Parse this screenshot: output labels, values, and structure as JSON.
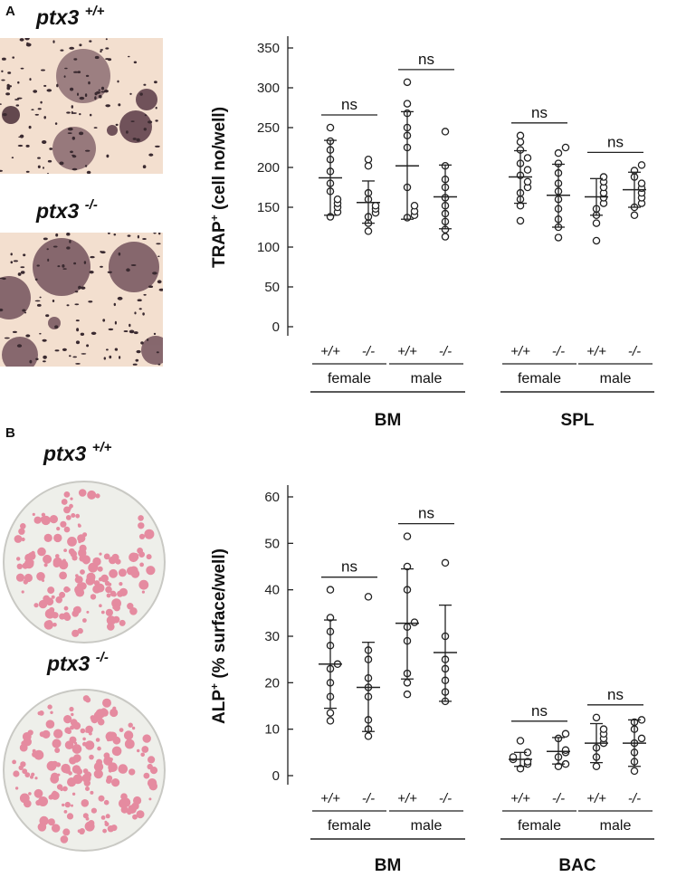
{
  "panels": {
    "a": {
      "letter": "A",
      "label_top": "ptx3",
      "label_top_sup": "+/+",
      "label_bottom": "ptx3",
      "label_bottom_sup": "-/-"
    },
    "b": {
      "letter": "B",
      "label_top": "ptx3",
      "label_top_sup": "+/+",
      "label_bottom": "ptx3",
      "label_bottom_sup": "-/-"
    }
  },
  "chart_data": [
    {
      "type": "scatter",
      "ylabel": "TRAP",
      "ylabel_sup": "+",
      "ylabel_rest": " (cell no/well)",
      "ylim": [
        0,
        350
      ],
      "yticks": [
        0,
        50,
        100,
        150,
        200,
        250,
        300,
        350
      ],
      "groups": [
        {
          "genotype": "+/+",
          "sex": "female",
          "tissue": "BM",
          "mean": 187,
          "sd_low": 140,
          "sd_high": 234,
          "points": [
            138,
            144,
            150,
            155,
            160,
            170,
            180,
            195,
            210,
            222,
            233,
            250
          ]
        },
        {
          "genotype": "-/-",
          "sex": "female",
          "tissue": "BM",
          "mean": 156,
          "sd_low": 130,
          "sd_high": 183,
          "points": [
            120,
            130,
            138,
            143,
            148,
            152,
            160,
            168,
            202,
            210
          ]
        },
        {
          "genotype": "+/+",
          "sex": "male",
          "tissue": "BM",
          "mean": 202,
          "sd_low": 135,
          "sd_high": 270,
          "points": [
            137,
            140,
            145,
            152,
            175,
            225,
            240,
            250,
            268,
            280,
            307
          ]
        },
        {
          "genotype": "-/-",
          "sex": "male",
          "tissue": "BM",
          "mean": 163,
          "sd_low": 123,
          "sd_high": 203,
          "points": [
            113,
            122,
            132,
            142,
            152,
            162,
            175,
            185,
            202,
            245
          ]
        },
        {
          "genotype": "+/+",
          "sex": "female",
          "tissue": "SPL",
          "mean": 188,
          "sd_low": 155,
          "sd_high": 221,
          "points": [
            133,
            152,
            160,
            168,
            175,
            182,
            190,
            197,
            205,
            212,
            222,
            232,
            240
          ]
        },
        {
          "genotype": "-/-",
          "sex": "female",
          "tissue": "SPL",
          "mean": 165,
          "sd_low": 125,
          "sd_high": 204,
          "points": [
            112,
            125,
            135,
            148,
            160,
            170,
            180,
            193,
            205,
            218,
            225
          ]
        },
        {
          "genotype": "+/+",
          "sex": "male",
          "tissue": "SPL",
          "mean": 163,
          "sd_low": 140,
          "sd_high": 186,
          "points": [
            108,
            130,
            140,
            148,
            155,
            162,
            168,
            175,
            182,
            188
          ]
        },
        {
          "genotype": "-/-",
          "sex": "male",
          "tissue": "SPL",
          "mean": 172,
          "sd_low": 150,
          "sd_high": 194,
          "points": [
            140,
            150,
            155,
            162,
            168,
            174,
            180,
            188,
            196,
            203
          ]
        }
      ],
      "annotations": [
        "ns",
        "ns",
        "ns",
        "ns"
      ],
      "x_labels": {
        "genotypes": [
          "+/+",
          "-/-",
          "+/+",
          "-/-",
          "+/+",
          "-/-",
          "+/+",
          "-/-"
        ],
        "sexes": [
          "female",
          "male",
          "female",
          "male"
        ],
        "tissues": [
          "BM",
          "SPL"
        ]
      }
    },
    {
      "type": "scatter",
      "ylabel": "ALP",
      "ylabel_sup": "+",
      "ylabel_rest": " (% surface/well)",
      "ylim": [
        0,
        60
      ],
      "yticks": [
        0,
        10,
        20,
        30,
        40,
        50,
        60
      ],
      "groups": [
        {
          "genotype": "+/+",
          "sex": "female",
          "tissue": "BM",
          "mean": 24,
          "sd_low": 14.5,
          "sd_high": 33.5,
          "points": [
            11.8,
            13.5,
            17,
            20,
            23,
            24,
            28,
            31,
            34,
            40
          ]
        },
        {
          "genotype": "-/-",
          "sex": "female",
          "tissue": "BM",
          "mean": 19,
          "sd_low": 9.5,
          "sd_high": 28.7,
          "points": [
            8.5,
            10,
            12,
            17,
            19,
            21,
            25,
            27,
            38.5
          ]
        },
        {
          "genotype": "+/+",
          "sex": "male",
          "tissue": "BM",
          "mean": 32.8,
          "sd_low": 20.8,
          "sd_high": 44.5,
          "points": [
            17.5,
            20,
            22,
            29,
            32,
            33,
            40,
            45,
            51.5
          ]
        },
        {
          "genotype": "-/-",
          "sex": "male",
          "tissue": "BM",
          "mean": 26.5,
          "sd_low": 16,
          "sd_high": 36.7,
          "points": [
            16,
            18,
            20.5,
            23,
            25,
            30,
            45.8
          ]
        },
        {
          "genotype": "+/+",
          "sex": "female",
          "tissue": "BAC",
          "mean": 3.5,
          "sd_low": 2,
          "sd_high": 5,
          "points": [
            1.5,
            2.5,
            3,
            3.5,
            4,
            5,
            7.5
          ]
        },
        {
          "genotype": "-/-",
          "sex": "female",
          "tissue": "BAC",
          "mean": 5.2,
          "sd_low": 2.5,
          "sd_high": 8.2,
          "points": [
            2,
            2.5,
            4,
            5,
            5.5,
            8,
            9
          ]
        },
        {
          "genotype": "+/+",
          "sex": "male",
          "tissue": "BAC",
          "mean": 7,
          "sd_low": 2.8,
          "sd_high": 11.2,
          "points": [
            2,
            4,
            6,
            7,
            8,
            9,
            10,
            12.5
          ]
        },
        {
          "genotype": "-/-",
          "sex": "male",
          "tissue": "BAC",
          "mean": 7,
          "sd_low": 2,
          "sd_high": 12,
          "points": [
            1,
            3,
            5,
            7,
            8,
            10,
            11.5,
            12
          ]
        }
      ],
      "annotations": [
        "ns",
        "ns",
        "ns",
        "ns"
      ],
      "x_labels": {
        "genotypes": [
          "+/+",
          "-/-",
          "+/+",
          "-/-",
          "+/+",
          "-/-",
          "+/+",
          "-/-"
        ],
        "sexes": [
          "female",
          "male",
          "female",
          "male"
        ],
        "tissues": [
          "BM",
          "BAC"
        ]
      }
    }
  ],
  "colors": {
    "trap_background": "#f3dfcf",
    "trap_stain": "#5a3a46",
    "alp_plate": "#eeefea",
    "alp_stain": "#e26a88",
    "axis": "#222222"
  }
}
